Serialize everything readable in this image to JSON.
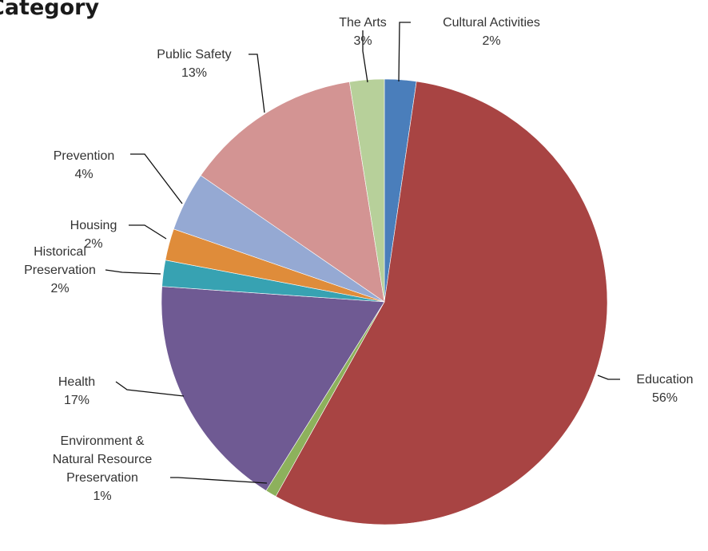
{
  "chart_data": {
    "type": "pie",
    "title": "Category",
    "slices": [
      {
        "label": "Cultural Activities",
        "label_lines": [
          "Cultural Activities"
        ],
        "percent_label": "2%",
        "value": 2.3,
        "color": "#4a7ebb"
      },
      {
        "label": "Education",
        "label_lines": [
          "Education"
        ],
        "percent_label": "56%",
        "value": 55.8,
        "color": "#a84443"
      },
      {
        "label": "Environment & Natural Resource Preservation",
        "label_lines": [
          "Environment &",
          "Natural Resource",
          "Preservation"
        ],
        "percent_label": "1%",
        "value": 0.8,
        "color": "#8db15c"
      },
      {
        "label": "Health",
        "label_lines": [
          "Health"
        ],
        "percent_label": "17%",
        "value": 17.2,
        "color": "#6f5a93"
      },
      {
        "label": "Historical Preservation",
        "label_lines": [
          "Historical",
          "Preservation"
        ],
        "percent_label": "2%",
        "value": 1.9,
        "color": "#37a2b2"
      },
      {
        "label": "Housing",
        "label_lines": [
          "Housing"
        ],
        "percent_label": "2%",
        "value": 2.3,
        "color": "#df8c3a"
      },
      {
        "label": "Prevention",
        "label_lines": [
          "Prevention"
        ],
        "percent_label": "4%",
        "value": 4.3,
        "color": "#95a9d3"
      },
      {
        "label": "Public Safety",
        "label_lines": [
          "Public Safety"
        ],
        "percent_label": "13%",
        "value": 12.9,
        "color": "#d39493"
      },
      {
        "label": "The Arts",
        "label_lines": [
          "The Arts"
        ],
        "percent_label": "3%",
        "value": 2.5,
        "color": "#b7d09a"
      }
    ],
    "start_angle_deg": 0,
    "direction": "clockwise",
    "legend": "none",
    "labels": "outside with leader lines"
  }
}
